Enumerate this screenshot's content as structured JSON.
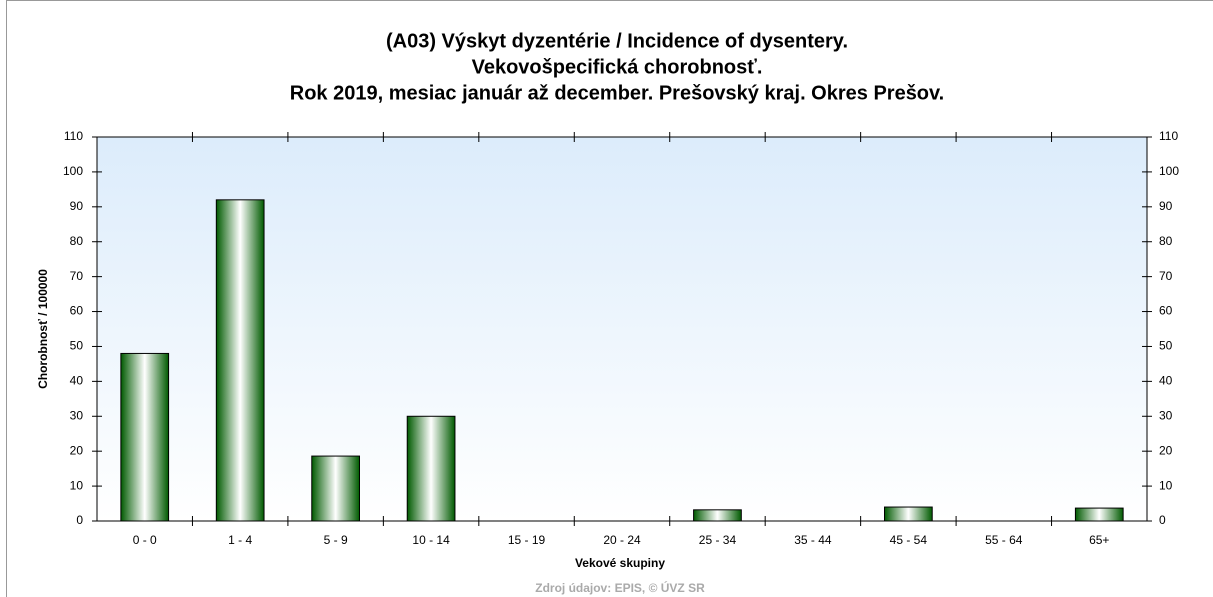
{
  "chart_data": {
    "type": "bar",
    "title": [
      "(A03) Výskyt dyzentérie / Incidence of dysentery.",
      "Vekovošpecifická chorobnosť.",
      "Rok 2019, mesiac január až december. Prešovský kraj. Okres Prešov."
    ],
    "xlabel": "Vekové skupiny",
    "ylabel": "Chorobnosť / 100000",
    "source": "Zdroj údajov: EPIS, © ÚVZ SR",
    "categories": [
      "0 - 0",
      "1 - 4",
      "5 - 9",
      "10 - 14",
      "15 - 19",
      "20 - 24",
      "25 - 34",
      "35 - 44",
      "45 - 54",
      "55 - 64",
      "65+"
    ],
    "values": [
      48,
      92,
      18.6,
      30,
      0,
      0,
      3.2,
      0,
      4,
      0,
      3.7
    ],
    "color": "#007000",
    "ylim": [
      0,
      110
    ],
    "yticks": [
      0,
      10,
      20,
      30,
      40,
      50,
      60,
      70,
      80,
      90,
      100,
      110
    ],
    "y2lim": [
      0,
      110
    ],
    "y2ticks": [
      0,
      10,
      20,
      30,
      40,
      50,
      60,
      70,
      80,
      90,
      100,
      110
    ]
  }
}
